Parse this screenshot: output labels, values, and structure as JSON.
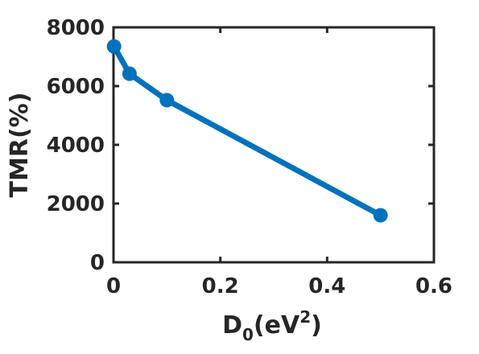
{
  "chart_data": {
    "type": "line",
    "xlabel": {
      "main": "D",
      "sub": "0",
      "open": "(eV",
      "sup": "2",
      "close": ")"
    },
    "ylabel": "TMR(%)",
    "xlim": [
      0,
      0.6
    ],
    "ylim": [
      0,
      8000
    ],
    "x_ticks": [
      0,
      0.2,
      0.4,
      0.6
    ],
    "x_tick_labels": [
      "0",
      "0.2",
      "0.4",
      "0.6"
    ],
    "y_ticks": [
      0,
      2000,
      4000,
      6000,
      8000
    ],
    "y_tick_labels": [
      "0",
      "2000",
      "4000",
      "6000",
      "8000"
    ],
    "grid": false,
    "series": [
      {
        "x": [
          0.001,
          0.03,
          0.1,
          0.5
        ],
        "y": [
          7350,
          6420,
          5520,
          1600
        ]
      }
    ],
    "colors": {
      "line": "#0072BD",
      "axis": "#262626"
    },
    "marker": "circle"
  }
}
